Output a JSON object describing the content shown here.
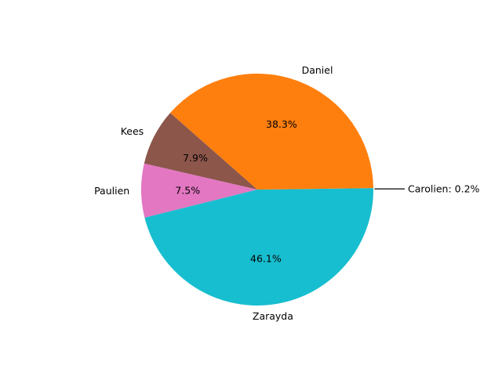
{
  "chart_data": {
    "type": "pie",
    "start_angle_deg": 0,
    "direction": "counterclockwise",
    "slices": [
      {
        "label": "Carolien",
        "value": 0.2,
        "pct_label": "",
        "callout": "Carolien: 0.2%",
        "color": "#17becf"
      },
      {
        "label": "Daniel",
        "value": 38.3,
        "pct_label": "38.3%",
        "color": "#ff7f0e"
      },
      {
        "label": "Kees",
        "value": 7.9,
        "pct_label": "7.9%",
        "color": "#8c564b"
      },
      {
        "label": "Paulien",
        "value": 7.5,
        "pct_label": "7.5%",
        "color": "#e377c2"
      },
      {
        "label": "Zarayda",
        "value": 46.1,
        "pct_label": "46.1%",
        "color": "#17becf"
      }
    ],
    "callout_line_color": "#000000"
  }
}
